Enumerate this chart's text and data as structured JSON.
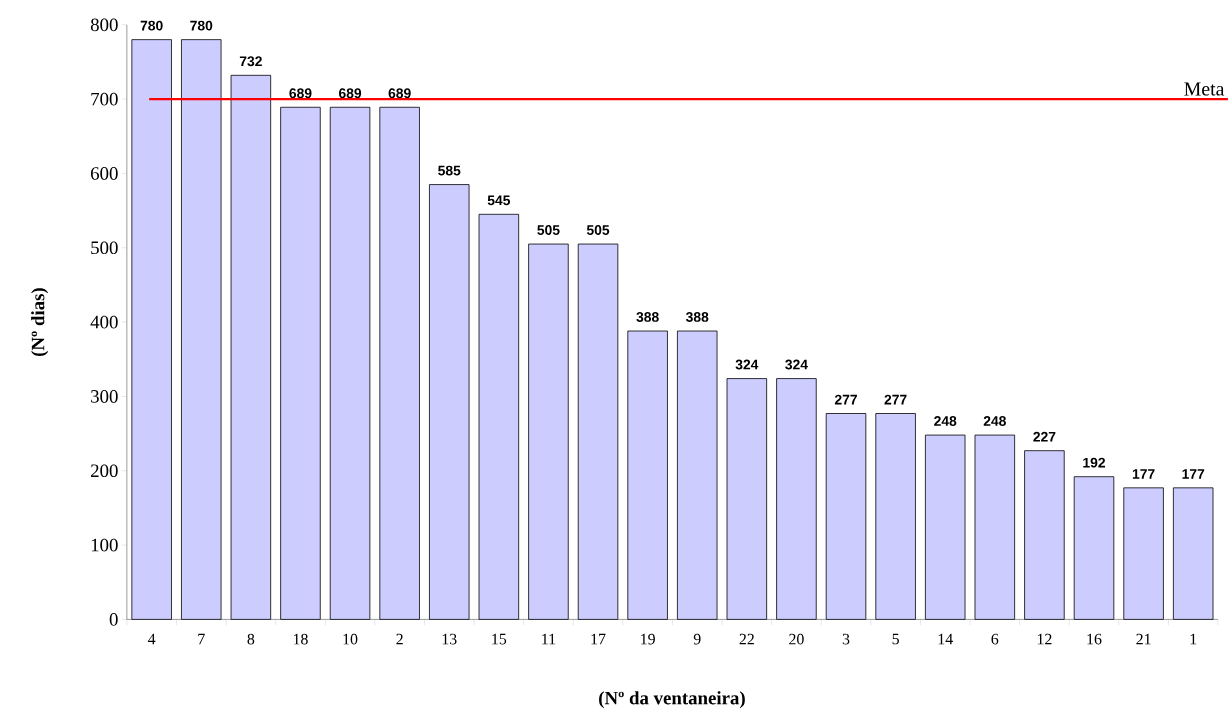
{
  "chart_data": {
    "type": "bar",
    "xlabel": "(Nº da ventaneira)",
    "ylabel": "(Nº dias)",
    "categories": [
      "4",
      "7",
      "8",
      "18",
      "10",
      "2",
      "13",
      "15",
      "11",
      "17",
      "19",
      "9",
      "22",
      "20",
      "3",
      "5",
      "14",
      "6",
      "12",
      "16",
      "21",
      "1"
    ],
    "values": [
      780,
      780,
      732,
      689,
      689,
      689,
      585,
      545,
      505,
      505,
      388,
      388,
      324,
      324,
      277,
      277,
      248,
      248,
      227,
      192,
      177,
      177
    ],
    "color": "#ccccff",
    "data_labels": true,
    "ylim": [
      0,
      800
    ],
    "yticks": [
      0,
      100,
      200,
      300,
      400,
      500,
      600,
      700,
      800
    ],
    "ref_lines": [
      {
        "axis": "y",
        "value": 700,
        "label": "Meta",
        "color": "#ff0000"
      }
    ]
  }
}
